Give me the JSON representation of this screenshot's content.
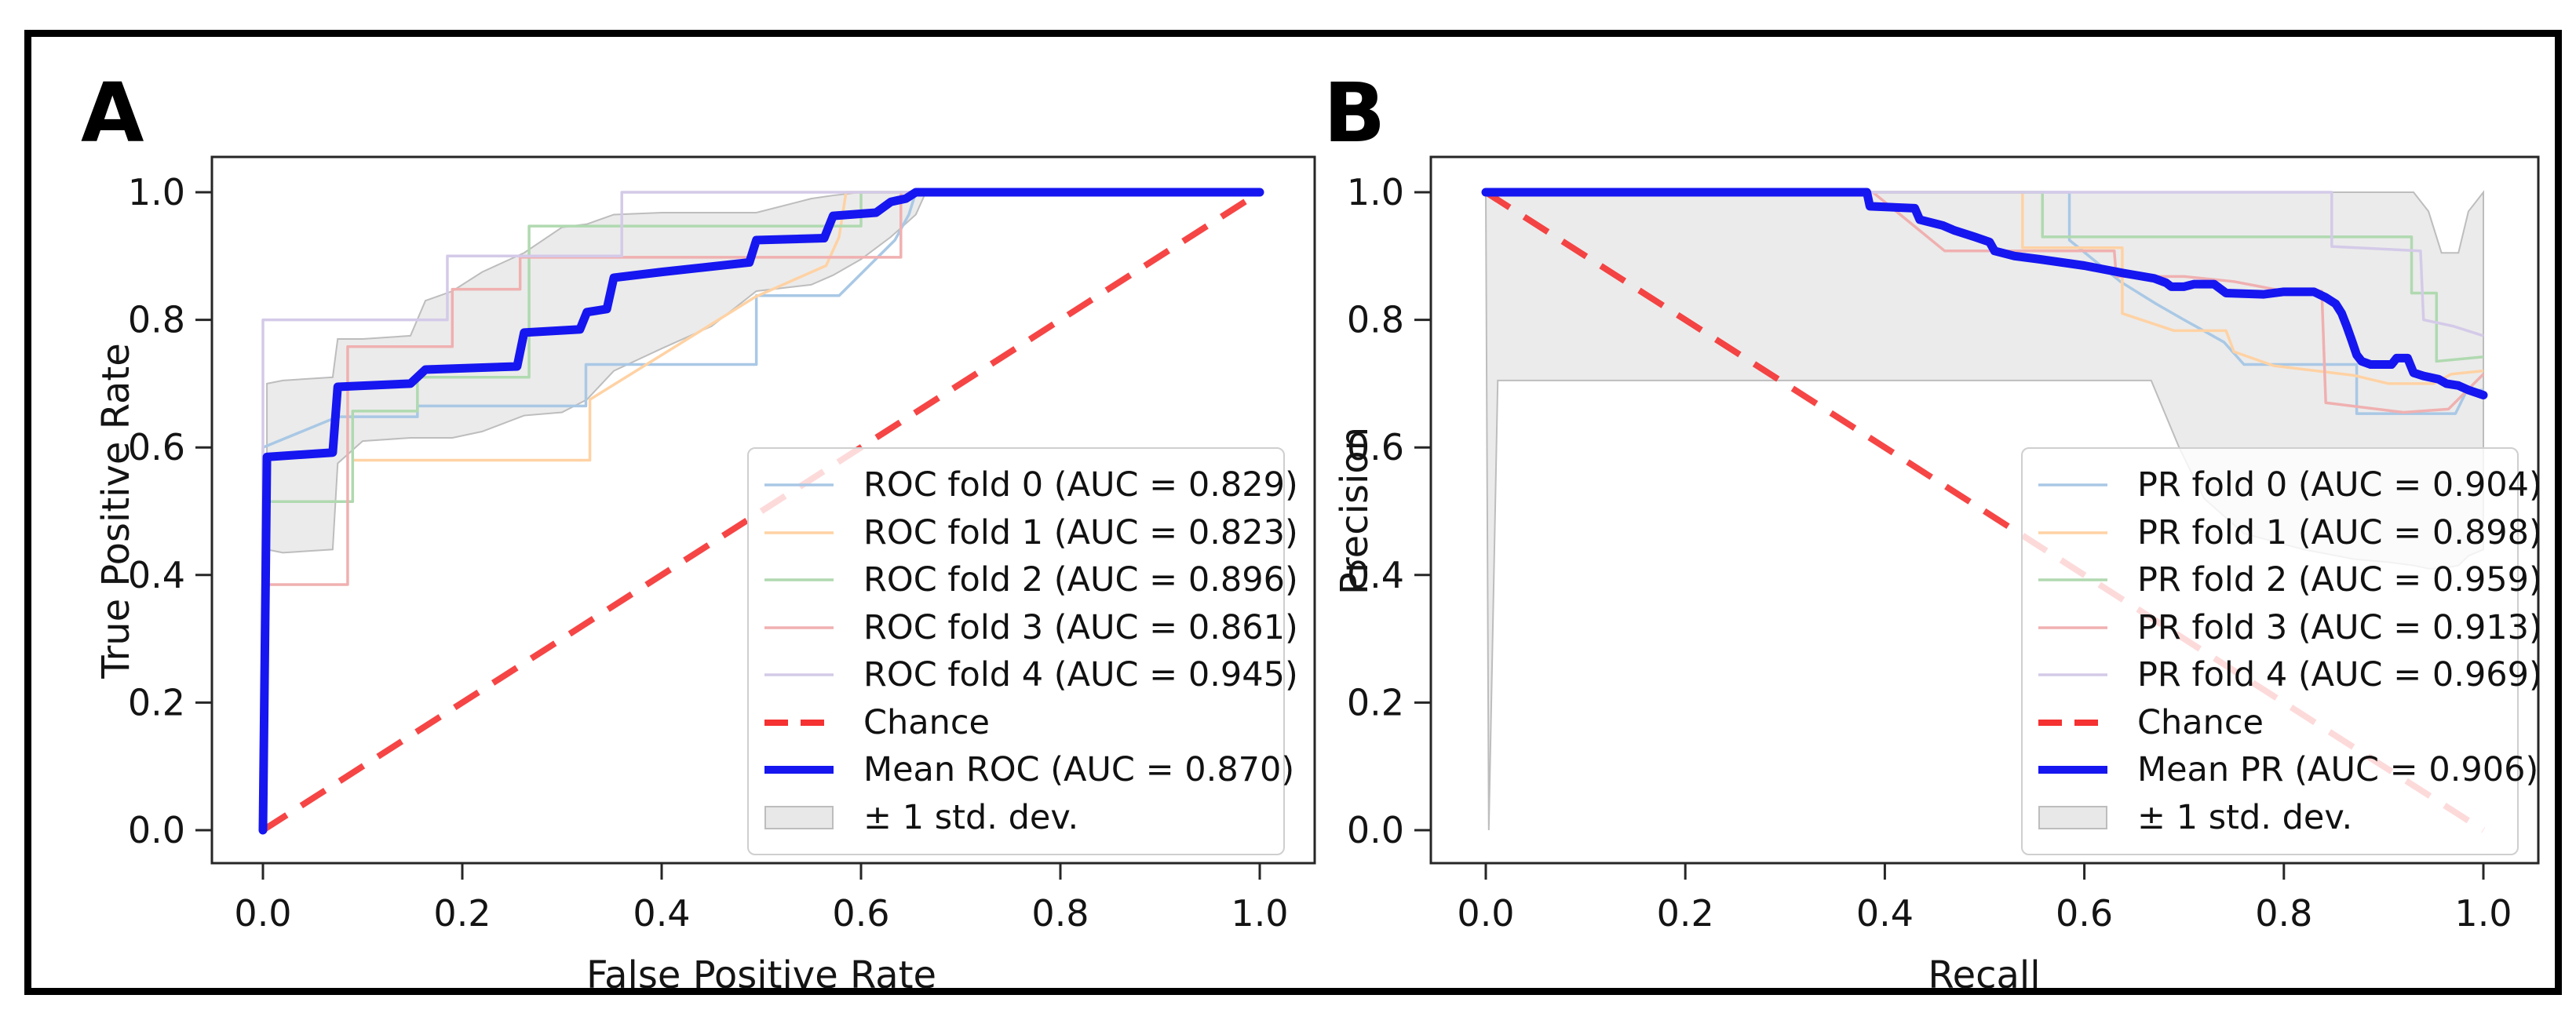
{
  "figure": {
    "background": "#ffffff",
    "border_color": "#000000",
    "colors": {
      "fold_lines": [
        "#a9c8e5",
        "#ffd2a4",
        "#b0d9b0",
        "#f0b0b0",
        "#d4cae8"
      ],
      "chance": "#f53131",
      "mean": "#1616f0",
      "band_fill": "#e8e8e8",
      "band_edge": "#bdbdbd",
      "spine": "#262626",
      "text": "#141414"
    }
  },
  "chart_data": [
    {
      "type": "line",
      "panel_label": "A",
      "xlabel": "False Positive Rate",
      "ylabel": "True Positive Rate",
      "xlim": [
        0,
        1
      ],
      "ylim": [
        0,
        1
      ],
      "x_ticks": [
        "0.0",
        "0.2",
        "0.4",
        "0.6",
        "0.8",
        "1.0"
      ],
      "y_ticks": [
        "0.0",
        "0.2",
        "0.4",
        "0.6",
        "0.8",
        "1.0"
      ],
      "grid": false,
      "legend_position": "lower right",
      "folds": [
        {
          "label": "ROC fold 0 (AUC = 0.829)",
          "auc": 0.829,
          "points": [
            [
              0,
              0
            ],
            [
              0,
              0.6
            ],
            [
              0.075,
              0.648
            ],
            [
              0.155,
              0.648
            ],
            [
              0.155,
              0.665
            ],
            [
              0.324,
              0.665
            ],
            [
              0.324,
              0.73
            ],
            [
              0.495,
              0.73
            ],
            [
              0.495,
              0.838
            ],
            [
              0.578,
              0.838
            ],
            [
              0.634,
              0.925
            ],
            [
              0.648,
              0.965
            ],
            [
              0.655,
              1
            ],
            [
              1,
              1
            ]
          ]
        },
        {
          "label": "ROC fold 1 (AUC = 0.823)",
          "auc": 0.823,
          "points": [
            [
              0,
              0
            ],
            [
              0,
              0.515
            ],
            [
              0.09,
              0.515
            ],
            [
              0.09,
              0.58
            ],
            [
              0.328,
              0.58
            ],
            [
              0.328,
              0.675
            ],
            [
              0.494,
              0.836
            ],
            [
              0.565,
              0.885
            ],
            [
              0.578,
              0.93
            ],
            [
              0.585,
              1
            ],
            [
              1,
              1
            ]
          ]
        },
        {
          "label": "ROC fold 2 (AUC = 0.896)",
          "auc": 0.896,
          "points": [
            [
              0,
              0
            ],
            [
              0,
              0.515
            ],
            [
              0.09,
              0.515
            ],
            [
              0.09,
              0.657
            ],
            [
              0.155,
              0.657
            ],
            [
              0.155,
              0.71
            ],
            [
              0.267,
              0.71
            ],
            [
              0.267,
              0.947
            ],
            [
              0.6,
              0.947
            ],
            [
              0.6,
              1
            ],
            [
              1,
              1
            ]
          ]
        },
        {
          "label": "ROC fold 3 (AUC = 0.861)",
          "auc": 0.861,
          "points": [
            [
              0,
              0
            ],
            [
              0,
              0.385
            ],
            [
              0.085,
              0.385
            ],
            [
              0.085,
              0.758
            ],
            [
              0.19,
              0.758
            ],
            [
              0.19,
              0.848
            ],
            [
              0.258,
              0.848
            ],
            [
              0.258,
              0.898
            ],
            [
              0.64,
              0.898
            ],
            [
              0.64,
              1
            ],
            [
              1,
              1
            ]
          ]
        },
        {
          "label": "ROC fold 4 (AUC = 0.945)",
          "auc": 0.945,
          "points": [
            [
              0,
              0
            ],
            [
              0,
              0.8
            ],
            [
              0.185,
              0.8
            ],
            [
              0.185,
              0.9
            ],
            [
              0.36,
              0.9
            ],
            [
              0.36,
              1
            ],
            [
              1,
              1
            ]
          ]
        }
      ],
      "chance": {
        "label": "Chance",
        "points": [
          [
            0,
            0
          ],
          [
            1,
            1
          ]
        ]
      },
      "mean": {
        "label": "Mean ROC (AUC = 0.870)",
        "auc": 0.87,
        "points": [
          [
            0,
            0
          ],
          [
            0.004,
            0.585
          ],
          [
            0.07,
            0.592
          ],
          [
            0.075,
            0.695
          ],
          [
            0.148,
            0.7
          ],
          [
            0.163,
            0.722
          ],
          [
            0.255,
            0.727
          ],
          [
            0.262,
            0.78
          ],
          [
            0.318,
            0.785
          ],
          [
            0.325,
            0.812
          ],
          [
            0.345,
            0.817
          ],
          [
            0.352,
            0.866
          ],
          [
            0.4,
            0.875
          ],
          [
            0.488,
            0.89
          ],
          [
            0.495,
            0.925
          ],
          [
            0.563,
            0.928
          ],
          [
            0.572,
            0.963
          ],
          [
            0.615,
            0.968
          ],
          [
            0.63,
            0.985
          ],
          [
            0.645,
            0.99
          ],
          [
            0.655,
            1
          ],
          [
            1,
            1
          ]
        ]
      },
      "band": {
        "label": "± 1 std. dev.",
        "x": [
          0.004,
          0.02,
          0.07,
          0.075,
          0.1,
          0.148,
          0.163,
          0.19,
          0.22,
          0.262,
          0.3,
          0.325,
          0.352,
          0.4,
          0.45,
          0.495,
          0.55,
          0.572,
          0.6,
          0.63,
          0.655,
          0.665
        ],
        "upper": [
          0.7,
          0.705,
          0.71,
          0.77,
          0.77,
          0.775,
          0.83,
          0.845,
          0.875,
          0.905,
          0.945,
          0.95,
          0.965,
          0.968,
          0.968,
          0.968,
          0.99,
          0.995,
          1,
          1,
          1,
          1
        ],
        "lower": [
          0.44,
          0.435,
          0.44,
          0.575,
          0.61,
          0.615,
          0.615,
          0.615,
          0.625,
          0.65,
          0.655,
          0.675,
          0.72,
          0.755,
          0.79,
          0.845,
          0.855,
          0.87,
          0.895,
          0.93,
          0.965,
          1
        ]
      }
    },
    {
      "type": "line",
      "panel_label": "B",
      "xlabel": "Recall",
      "ylabel": "Precision",
      "xlim": [
        0,
        1
      ],
      "ylim": [
        0,
        1
      ],
      "x_ticks": [
        "0.0",
        "0.2",
        "0.4",
        "0.6",
        "0.8",
        "1.0"
      ],
      "y_ticks": [
        "0.0",
        "0.2",
        "0.4",
        "0.6",
        "0.8",
        "1.0"
      ],
      "grid": false,
      "legend_position": "lower right",
      "folds": [
        {
          "label": "PR fold 0 (AUC = 0.904)",
          "auc": 0.904,
          "points": [
            [
              0,
              1
            ],
            [
              0.585,
              1
            ],
            [
              0.585,
              0.925
            ],
            [
              0.636,
              0.86
            ],
            [
              0.672,
              0.825
            ],
            [
              0.7,
              0.8
            ],
            [
              0.74,
              0.765
            ],
            [
              0.76,
              0.73
            ],
            [
              0.873,
              0.73
            ],
            [
              0.873,
              0.653
            ],
            [
              0.972,
              0.653
            ],
            [
              0.983,
              0.688
            ],
            [
              1,
              0.69
            ]
          ]
        },
        {
          "label": "PR fold 1 (AUC = 0.898)",
          "auc": 0.898,
          "points": [
            [
              0,
              1
            ],
            [
              0.538,
              1
            ],
            [
              0.538,
              0.913
            ],
            [
              0.638,
              0.913
            ],
            [
              0.638,
              0.81
            ],
            [
              0.69,
              0.783
            ],
            [
              0.742,
              0.783
            ],
            [
              0.75,
              0.75
            ],
            [
              0.79,
              0.728
            ],
            [
              0.87,
              0.713
            ],
            [
              0.905,
              0.7
            ],
            [
              0.95,
              0.7
            ],
            [
              0.968,
              0.715
            ],
            [
              1,
              0.72
            ]
          ]
        },
        {
          "label": "PR fold 2 (AUC = 0.959)",
          "auc": 0.959,
          "points": [
            [
              0,
              1
            ],
            [
              0.558,
              1
            ],
            [
              0.558,
              0.93
            ],
            [
              0.928,
              0.93
            ],
            [
              0.928,
              0.842
            ],
            [
              0.953,
              0.842
            ],
            [
              0.953,
              0.735
            ],
            [
              1,
              0.742
            ]
          ]
        },
        {
          "label": "PR fold 3 (AUC = 0.913)",
          "auc": 0.913,
          "points": [
            [
              0,
              1
            ],
            [
              0.388,
              1
            ],
            [
              0.46,
              0.908
            ],
            [
              0.63,
              0.908
            ],
            [
              0.632,
              0.868
            ],
            [
              0.7,
              0.868
            ],
            [
              0.75,
              0.86
            ],
            [
              0.8,
              0.845
            ],
            [
              0.838,
              0.845
            ],
            [
              0.842,
              0.67
            ],
            [
              0.92,
              0.655
            ],
            [
              0.965,
              0.66
            ],
            [
              1,
              0.715
            ]
          ]
        },
        {
          "label": "PR fold 4 (AUC = 0.969)",
          "auc": 0.969,
          "points": [
            [
              0,
              1
            ],
            [
              0.848,
              1
            ],
            [
              0.848,
              0.915
            ],
            [
              0.937,
              0.908
            ],
            [
              0.94,
              0.8
            ],
            [
              0.97,
              0.79
            ],
            [
              1,
              0.775
            ]
          ]
        }
      ],
      "chance": {
        "label": "Chance",
        "points": [
          [
            0,
            1
          ],
          [
            1,
            0
          ]
        ]
      },
      "mean": {
        "label": "Mean PR (AUC = 0.906)",
        "auc": 0.906,
        "points": [
          [
            0,
            1
          ],
          [
            0.382,
            1
          ],
          [
            0.385,
            0.978
          ],
          [
            0.43,
            0.975
          ],
          [
            0.435,
            0.957
          ],
          [
            0.44,
            0.955
          ],
          [
            0.458,
            0.948
          ],
          [
            0.47,
            0.94
          ],
          [
            0.49,
            0.93
          ],
          [
            0.505,
            0.922
          ],
          [
            0.51,
            0.908
          ],
          [
            0.53,
            0.9
          ],
          [
            0.555,
            0.895
          ],
          [
            0.6,
            0.885
          ],
          [
            0.64,
            0.873
          ],
          [
            0.67,
            0.865
          ],
          [
            0.682,
            0.858
          ],
          [
            0.687,
            0.852
          ],
          [
            0.7,
            0.852
          ],
          [
            0.71,
            0.856
          ],
          [
            0.73,
            0.856
          ],
          [
            0.742,
            0.842
          ],
          [
            0.78,
            0.84
          ],
          [
            0.8,
            0.844
          ],
          [
            0.83,
            0.844
          ],
          [
            0.842,
            0.835
          ],
          [
            0.852,
            0.825
          ],
          [
            0.858,
            0.81
          ],
          [
            0.863,
            0.79
          ],
          [
            0.868,
            0.768
          ],
          [
            0.873,
            0.745
          ],
          [
            0.878,
            0.735
          ],
          [
            0.887,
            0.73
          ],
          [
            0.908,
            0.73
          ],
          [
            0.913,
            0.74
          ],
          [
            0.924,
            0.74
          ],
          [
            0.93,
            0.717
          ],
          [
            0.94,
            0.712
          ],
          [
            0.955,
            0.707
          ],
          [
            0.963,
            0.7
          ],
          [
            0.975,
            0.697
          ],
          [
            0.985,
            0.69
          ],
          [
            1,
            0.682
          ]
        ]
      },
      "band": {
        "label": "± 1 std. dev.",
        "x": [
          0.0,
          0.003,
          0.012,
          0.667,
          0.695,
          0.72,
          0.76,
          0.82,
          0.87,
          0.905,
          0.93,
          0.945,
          0.958,
          0.975,
          0.985,
          1.0
        ],
        "upper": [
          1,
          1,
          1,
          1,
          1,
          1,
          1,
          1,
          1,
          1,
          1,
          0.97,
          0.905,
          0.905,
          0.97,
          1
        ],
        "lower": [
          1,
          0.0,
          0.705,
          0.705,
          0.6,
          0.52,
          0.465,
          0.44,
          0.425,
          0.42,
          0.415,
          0.41,
          0.41,
          0.415,
          0.43,
          0.44
        ]
      }
    }
  ]
}
